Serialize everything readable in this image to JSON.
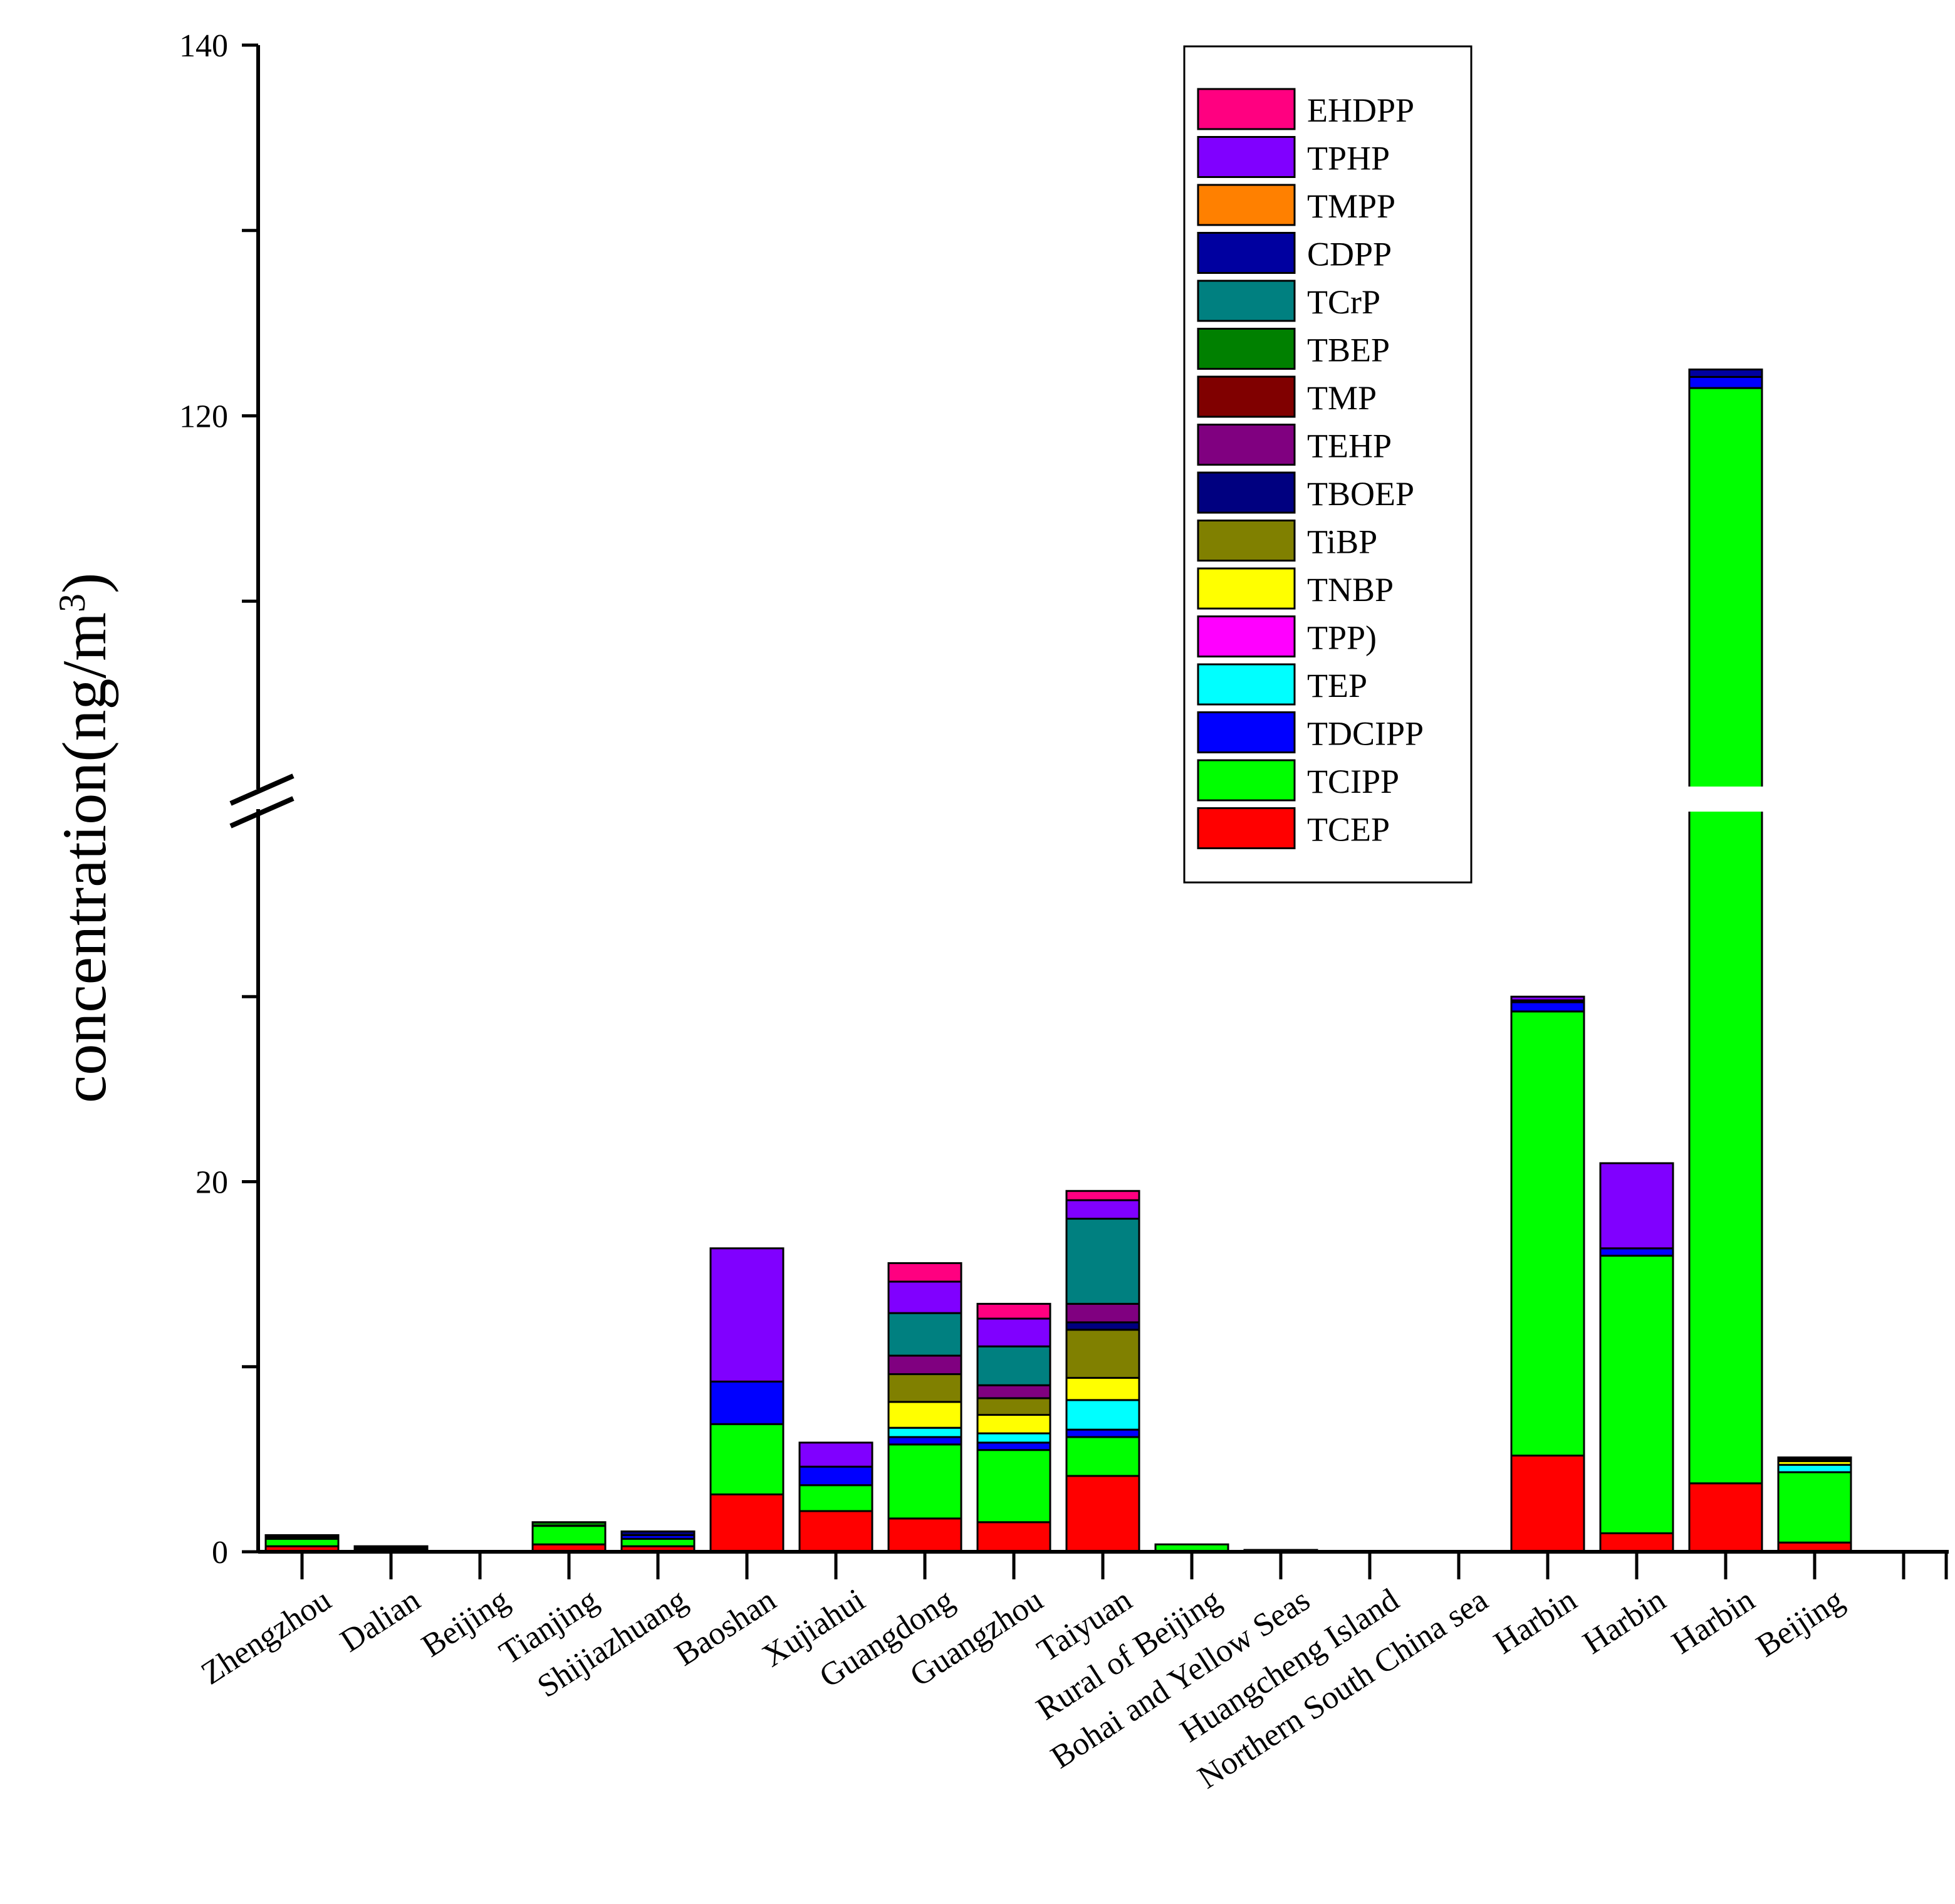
{
  "chart_data": {
    "type": "bar",
    "stacked": true,
    "title": "",
    "xlabel": "",
    "ylabel": "concentration(ng/m",
    "ylabel_sup": "3",
    "ylabel_close": ")",
    "y_axis_break": {
      "lower_range": [
        0,
        40
      ],
      "upper_range": [
        100,
        140
      ]
    },
    "yticks_labeled": [
      "0",
      "20",
      "120",
      "140"
    ],
    "legend_position": "top-right",
    "categories": [
      "Zhengzhou",
      "Dalian",
      "Beijing",
      "Tianjing",
      "Shijiazhuang",
      "Baoshan",
      "Xujiahui",
      "Guangdong",
      "Guangzhou",
      "Taiyuan",
      "Rural of Beijing",
      "Bohai and Yellow Seas",
      "Huangcheng Island",
      "Northern South China sea",
      "Harbin",
      "Harbin",
      "Harbin",
      "Beijing"
    ],
    "series": [
      {
        "name": "TCEP",
        "color": "#ff0000",
        "values": [
          0.3,
          0.1,
          0,
          0.4,
          0.3,
          3.1,
          2.2,
          1.8,
          1.6,
          4.1,
          0,
          0,
          0,
          0,
          5.2,
          1.0,
          3.7,
          0.5
        ]
      },
      {
        "name": "TCIPP",
        "color": "#00ff00",
        "values": [
          0.4,
          0.1,
          0,
          1.0,
          0.4,
          3.8,
          1.4,
          4.0,
          3.9,
          2.1,
          0.4,
          0.1,
          0,
          0.05,
          24.0,
          15.0,
          117.8,
          3.8
        ]
      },
      {
        "name": "TDCIPP",
        "color": "#0000ff",
        "values": [
          0,
          0,
          0,
          0,
          0.2,
          2.3,
          1.0,
          0.4,
          0.4,
          0.4,
          0,
          0,
          0,
          0,
          0.5,
          0.4,
          0.6,
          0
        ]
      },
      {
        "name": "TEP",
        "color": "#00ffff",
        "values": [
          0,
          0,
          0,
          0,
          0,
          0,
          0,
          0.5,
          0.5,
          1.6,
          0,
          0,
          0,
          0,
          0,
          0,
          0,
          0.4
        ]
      },
      {
        "name": "TPP)",
        "color": "#ff00ff",
        "values": [
          0,
          0,
          0,
          0,
          0,
          0,
          0,
          0,
          0,
          0,
          0,
          0,
          0,
          0,
          0,
          0,
          0,
          0
        ]
      },
      {
        "name": "TNBP",
        "color": "#ffff00",
        "values": [
          0,
          0,
          0,
          0,
          0,
          0,
          0,
          1.4,
          1.0,
          1.2,
          0,
          0,
          0,
          0,
          0,
          0,
          0,
          0.2
        ]
      },
      {
        "name": "TiBP",
        "color": "#808000",
        "values": [
          0.1,
          0,
          0,
          0,
          0,
          0,
          0,
          1.5,
          0.9,
          2.6,
          0,
          0,
          0,
          0,
          0,
          0,
          0,
          0.1
        ]
      },
      {
        "name": "TBOEP",
        "color": "#000080",
        "values": [
          0,
          0,
          0,
          0,
          0.2,
          0,
          0,
          0,
          0,
          0.4,
          0,
          0,
          0,
          0,
          0,
          0,
          0,
          0.1
        ]
      },
      {
        "name": "TEHP",
        "color": "#800080",
        "values": [
          0,
          0,
          0,
          0,
          0,
          0,
          0,
          1.0,
          0.7,
          1.0,
          0,
          0,
          0,
          0,
          0,
          0,
          0,
          0
        ]
      },
      {
        "name": "TMP",
        "color": "#800000",
        "values": [
          0,
          0,
          0,
          0,
          0,
          0,
          0,
          0,
          0,
          0,
          0,
          0,
          0,
          0,
          0,
          0,
          0,
          0
        ]
      },
      {
        "name": "TBEP",
        "color": "#008000",
        "values": [
          0.1,
          0.1,
          0,
          0.2,
          0,
          0,
          0,
          0,
          0,
          0,
          0,
          0,
          0,
          0,
          0,
          0,
          0,
          0
        ]
      },
      {
        "name": "TCrP",
        "color": "#008080",
        "values": [
          0,
          0,
          0,
          0,
          0,
          0,
          0,
          2.3,
          2.1,
          4.6,
          0,
          0,
          0,
          0,
          0,
          0,
          0,
          0
        ]
      },
      {
        "name": "CDPP",
        "color": "#0000a0",
        "values": [
          0,
          0,
          0,
          0,
          0,
          0,
          0,
          0,
          0,
          0,
          0,
          0,
          0,
          0,
          0.1,
          0,
          0.4,
          0
        ]
      },
      {
        "name": "TMPP",
        "color": "#ff8000",
        "values": [
          0,
          0,
          0,
          0,
          0,
          0,
          0,
          0,
          0,
          0,
          0,
          0,
          0,
          0,
          0,
          0,
          0,
          0
        ]
      },
      {
        "name": "TPHP",
        "color": "#8000ff",
        "values": [
          0,
          0,
          0,
          0,
          0,
          7.2,
          1.3,
          1.7,
          1.5,
          1.0,
          0,
          0,
          0,
          0,
          0.2,
          4.6,
          0,
          0
        ]
      },
      {
        "name": "EHDPP",
        "color": "#ff0080",
        "values": [
          0,
          0,
          0,
          0,
          0,
          0,
          0,
          1.0,
          0.8,
          0.5,
          0,
          0,
          0,
          0,
          0,
          0,
          0,
          0
        ]
      }
    ]
  }
}
